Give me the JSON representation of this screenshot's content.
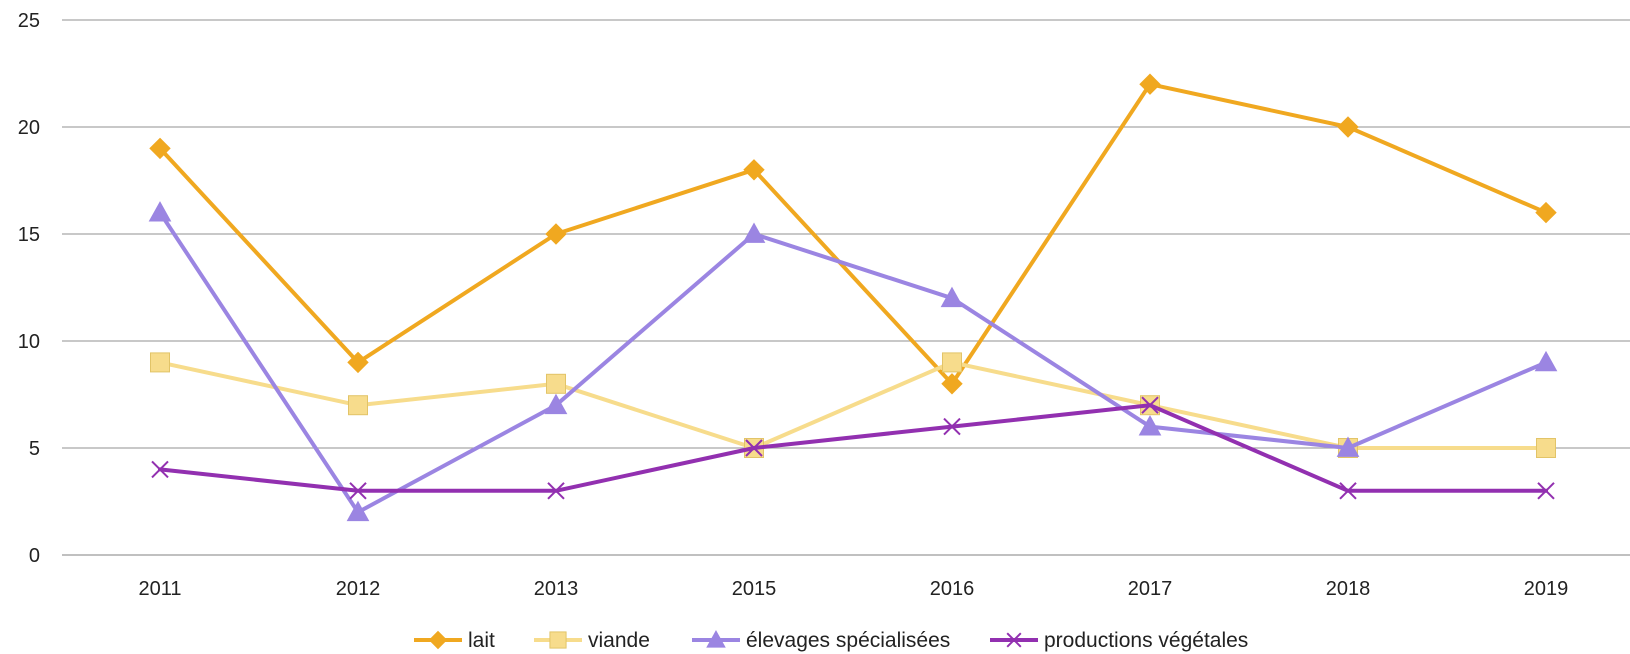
{
  "chart_data": {
    "type": "line",
    "categories": [
      "2011",
      "2012",
      "2013",
      "2015",
      "2016",
      "2017",
      "2018",
      "2019"
    ],
    "ylim": [
      0,
      25
    ],
    "yticks": [
      0,
      5,
      10,
      15,
      20,
      25
    ],
    "grid": true,
    "legend_position": "bottom",
    "series": [
      {
        "name": "lait",
        "values": [
          19,
          9,
          15,
          18,
          8,
          22,
          20,
          16
        ],
        "color": "#F0A820",
        "marker": "diamond"
      },
      {
        "name": "viande",
        "values": [
          9,
          7,
          8,
          5,
          9,
          7,
          5,
          5
        ],
        "color": "#F7DC8C",
        "marker": "square"
      },
      {
        "name": "élevages spécialisées",
        "values": [
          16,
          2,
          7,
          15,
          12,
          6,
          5,
          9
        ],
        "color": "#9B85E2",
        "marker": "triangle"
      },
      {
        "name": "productions végétales",
        "values": [
          4,
          3,
          3,
          5,
          6,
          7,
          3,
          3
        ],
        "color": "#9230B0",
        "marker": "x"
      }
    ]
  }
}
